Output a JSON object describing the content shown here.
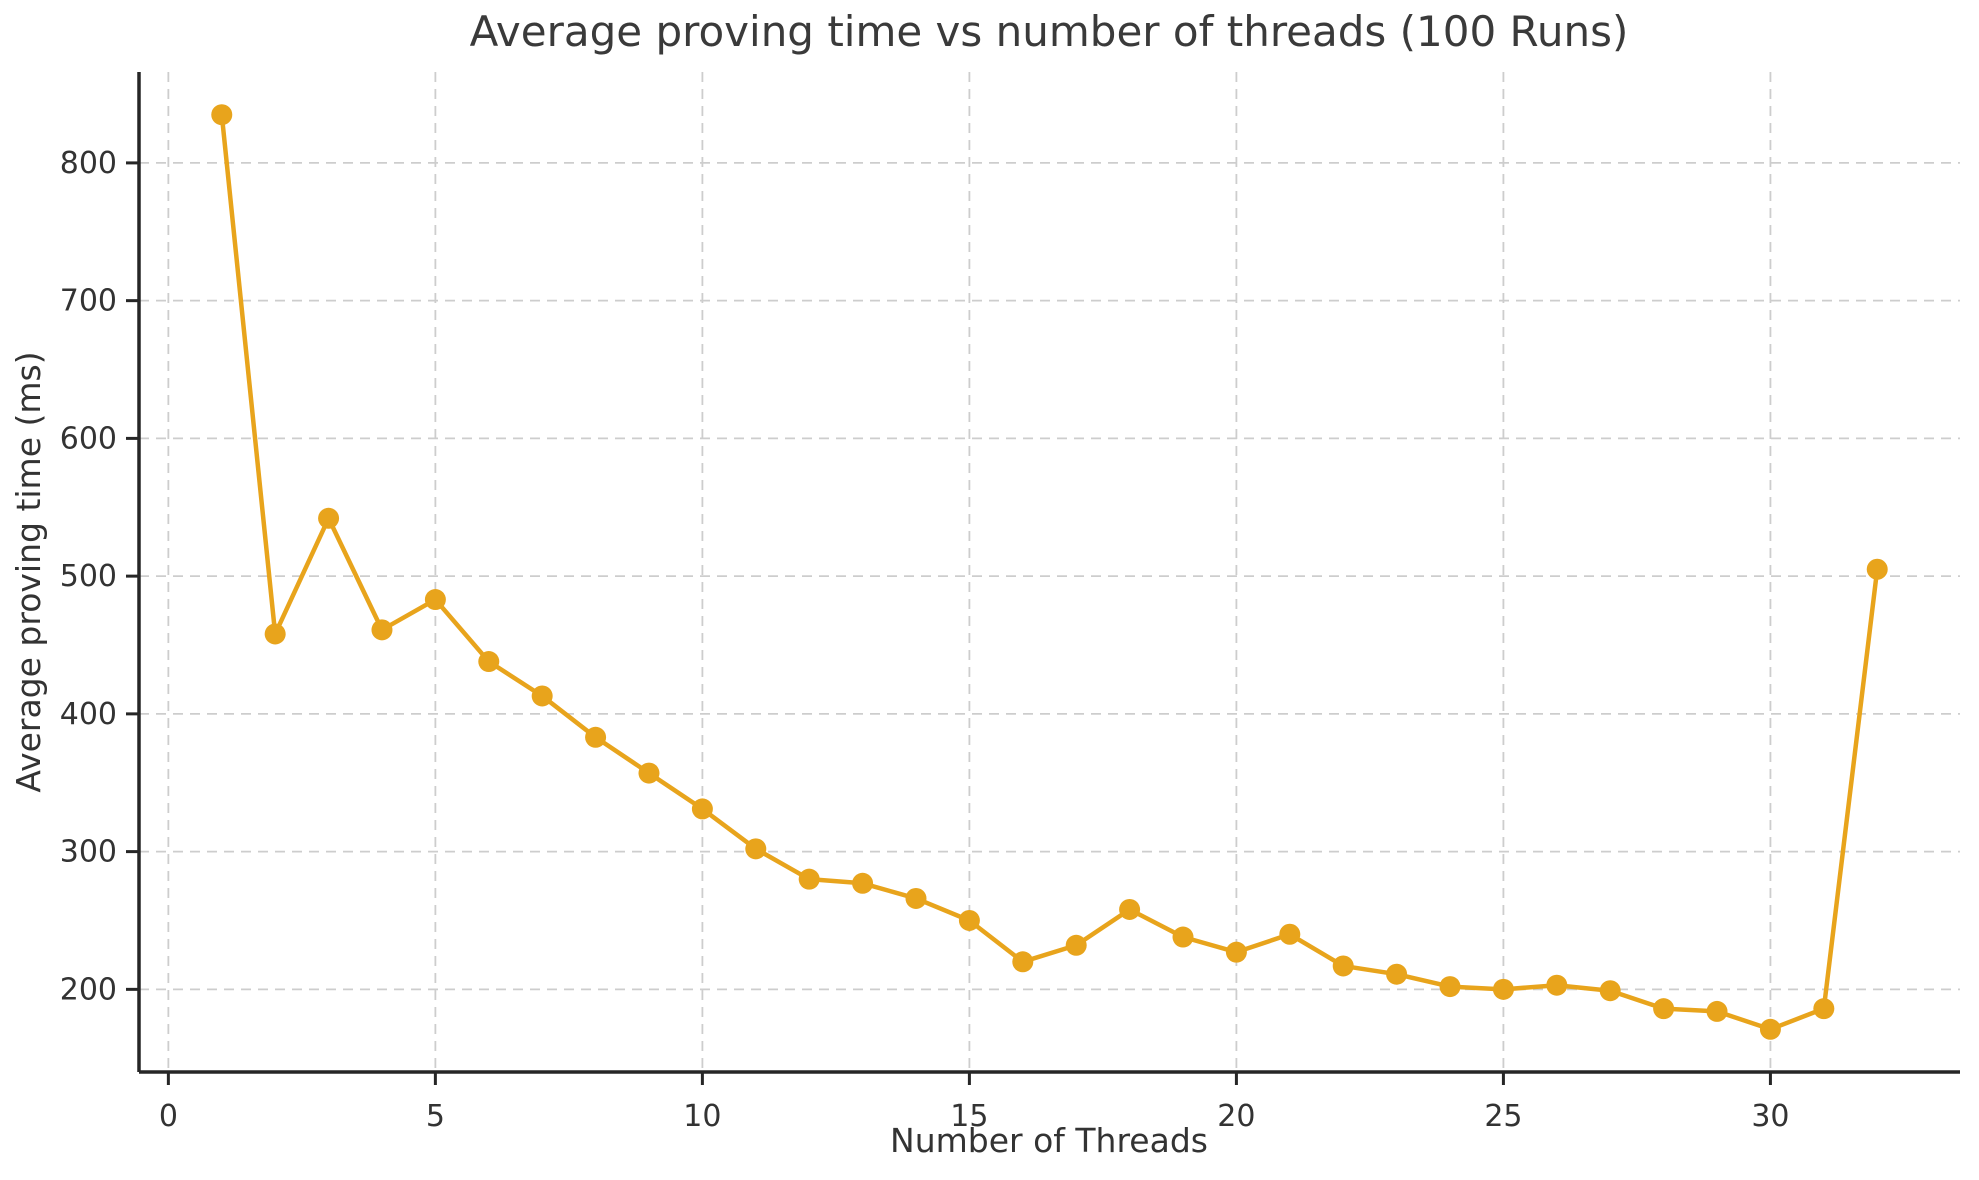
{
  "chart_data": {
    "type": "line",
    "title": "Average proving time vs number of threads (100 Runs)",
    "xlabel": "Number of Threads",
    "ylabel": "Average proving time (ms)",
    "series": [
      {
        "name": "average-proving-time-ms",
        "x": [
          1,
          2,
          3,
          4,
          5,
          6,
          7,
          8,
          9,
          10,
          11,
          12,
          13,
          14,
          15,
          16,
          17,
          18,
          19,
          20,
          21,
          22,
          23,
          24,
          25,
          26,
          27,
          28,
          29,
          30,
          31,
          32
        ],
        "y": [
          835,
          458,
          542,
          461,
          483,
          438,
          413,
          383,
          357,
          331,
          302,
          280,
          277,
          266,
          250,
          220,
          232,
          258,
          238,
          227,
          240,
          217,
          211,
          202,
          200,
          203,
          199,
          186,
          184,
          171,
          186,
          505
        ]
      }
    ],
    "xticks": [
      0,
      5,
      10,
      15,
      20,
      25,
      30
    ],
    "yticks": [
      200,
      300,
      400,
      500,
      600,
      700,
      800
    ],
    "xlim": [
      -0.55,
      33.55
    ],
    "ylim": [
      140,
      866
    ],
    "grid": true,
    "grid_style": "dashed",
    "legend": "none",
    "marker": "circle",
    "colors": {
      "line": "#E8A41C",
      "marker": "#E8A41C",
      "grid": "#cdcdcd",
      "spine": "#262626",
      "text": "#3a3a3a",
      "background": "#ffffff"
    }
  }
}
